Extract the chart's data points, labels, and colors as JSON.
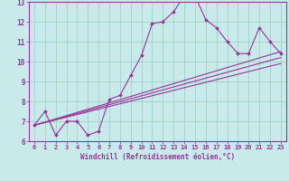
{
  "xlabel": "Windchill (Refroidissement éolien,°C)",
  "xlim": [
    -0.5,
    23.5
  ],
  "ylim": [
    6,
    13
  ],
  "xticks": [
    0,
    1,
    2,
    3,
    4,
    5,
    6,
    7,
    8,
    9,
    10,
    11,
    12,
    13,
    14,
    15,
    16,
    17,
    18,
    19,
    20,
    21,
    22,
    23
  ],
  "yticks": [
    6,
    7,
    8,
    9,
    10,
    11,
    12,
    13
  ],
  "bg_color": "#c8eaea",
  "line_color": "#993399",
  "grid_color": "#99ccbb",
  "main_curve": {
    "x": [
      0,
      1,
      2,
      3,
      4,
      5,
      6,
      7,
      8,
      9,
      10,
      11,
      12,
      13,
      14,
      15,
      16,
      17,
      18,
      19,
      20,
      21,
      22,
      23
    ],
    "y": [
      6.8,
      7.5,
      6.3,
      7.0,
      7.0,
      6.3,
      6.5,
      8.1,
      8.3,
      9.3,
      10.3,
      11.9,
      12.0,
      12.5,
      13.3,
      13.3,
      12.1,
      11.7,
      11.0,
      10.4,
      10.4,
      11.7,
      11.0,
      10.4
    ]
  },
  "linear_curves": [
    {
      "x": [
        0,
        23
      ],
      "y": [
        6.8,
        10.5
      ]
    },
    {
      "x": [
        0,
        23
      ],
      "y": [
        6.8,
        10.2
      ]
    },
    {
      "x": [
        0,
        23
      ],
      "y": [
        6.8,
        9.9
      ]
    }
  ]
}
